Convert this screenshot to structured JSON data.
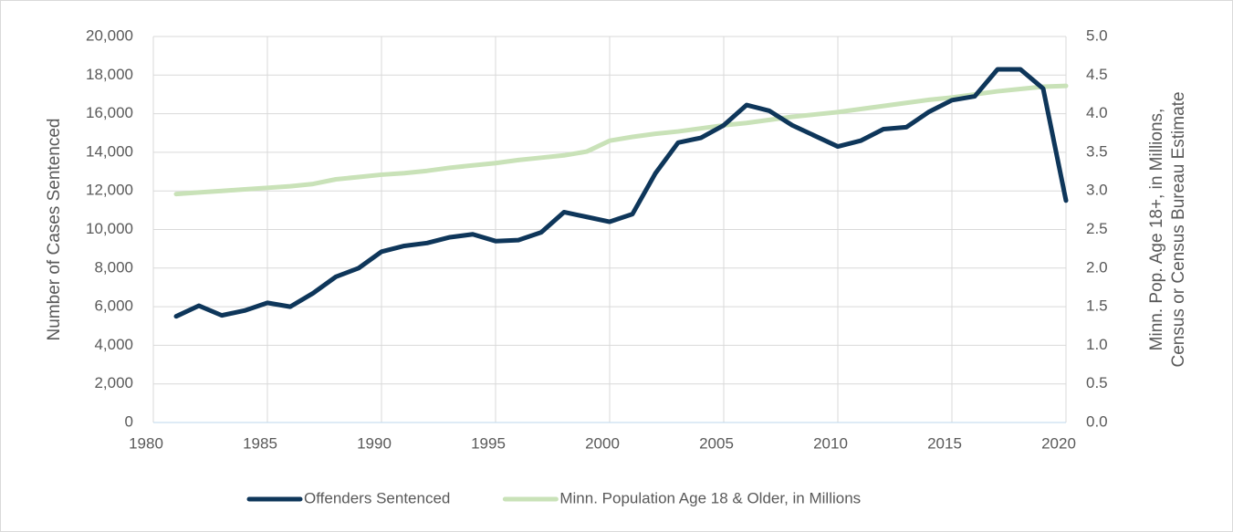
{
  "chart_data": {
    "type": "line",
    "y_label": "Number of Cases Sentenced",
    "y2_label": [
      "Minn. Pop. Age 18+, in Millions,",
      "Census or Census Bureau Estimate"
    ],
    "x": [
      1981,
      1982,
      1983,
      1984,
      1985,
      1986,
      1987,
      1988,
      1989,
      1990,
      1991,
      1992,
      1993,
      1994,
      1995,
      1996,
      1997,
      1998,
      1999,
      2000,
      2001,
      2002,
      2003,
      2004,
      2005,
      2006,
      2007,
      2008,
      2009,
      2010,
      2011,
      2012,
      2013,
      2014,
      2015,
      2016,
      2017,
      2018,
      2019,
      2020
    ],
    "series": [
      {
        "name": "Offenders Sentenced",
        "color": "#0e365a",
        "axis": "y",
        "values": [
          5500,
          6050,
          5550,
          5800,
          6200,
          6000,
          6700,
          7550,
          8000,
          8850,
          9150,
          9300,
          9600,
          9750,
          9400,
          9450,
          9850,
          10900,
          10650,
          10400,
          10800,
          12900,
          14500,
          14750,
          15400,
          16450,
          16150,
          15400,
          14850,
          14300,
          14600,
          15200,
          15300,
          16100,
          16700,
          16900,
          18300,
          18300,
          17300,
          11500
        ]
      },
      {
        "name": "Minn. Population Age 18 & Older, in Millions",
        "color": "#c9e2b8",
        "axis": "y2",
        "values": [
          2.96,
          2.98,
          3.0,
          3.02,
          3.04,
          3.06,
          3.09,
          3.15,
          3.18,
          3.21,
          3.23,
          3.26,
          3.3,
          3.33,
          3.36,
          3.4,
          3.43,
          3.46,
          3.51,
          3.65,
          3.7,
          3.74,
          3.77,
          3.81,
          3.85,
          3.88,
          3.92,
          3.96,
          3.99,
          4.02,
          4.06,
          4.1,
          4.14,
          4.18,
          4.21,
          4.25,
          4.29,
          4.32,
          4.35,
          4.36
        ]
      }
    ],
    "xlim": [
      1980,
      2020
    ],
    "xticks": [
      1980,
      1985,
      1990,
      1995,
      2000,
      2005,
      2010,
      2015,
      2020
    ],
    "ylim": [
      0,
      20000
    ],
    "yticks": [
      0,
      {
        "value": 2000,
        "label": "2,000"
      },
      {
        "value": 4000,
        "label": "4,000"
      },
      {
        "value": 6000,
        "label": "6,000"
      },
      {
        "value": 8000,
        "label": "8,000"
      },
      {
        "value": 10000,
        "label": "10,000"
      },
      {
        "value": 12000,
        "label": "12,000"
      },
      {
        "value": 14000,
        "label": "14,000"
      },
      {
        "value": 16000,
        "label": "16,000"
      },
      {
        "value": 18000,
        "label": "18,000"
      },
      {
        "value": 20000,
        "label": "20,000"
      }
    ],
    "y2lim": [
      0,
      5
    ],
    "y2ticks": [
      {
        "value": 0,
        "label": "0.0"
      },
      {
        "value": 0.5,
        "label": "0.5"
      },
      {
        "value": 1,
        "label": "1.0"
      },
      {
        "value": 1.5,
        "label": "1.5"
      },
      {
        "value": 2,
        "label": "2.0"
      },
      {
        "value": 2.5,
        "label": "2.5"
      },
      {
        "value": 3,
        "label": "3.0"
      },
      {
        "value": 3.5,
        "label": "3.5"
      },
      {
        "value": 4,
        "label": "4.0"
      },
      {
        "value": 4.5,
        "label": "4.5"
      },
      {
        "value": 5,
        "label": "5.0"
      }
    ],
    "grid": true,
    "legend": "bottom"
  }
}
